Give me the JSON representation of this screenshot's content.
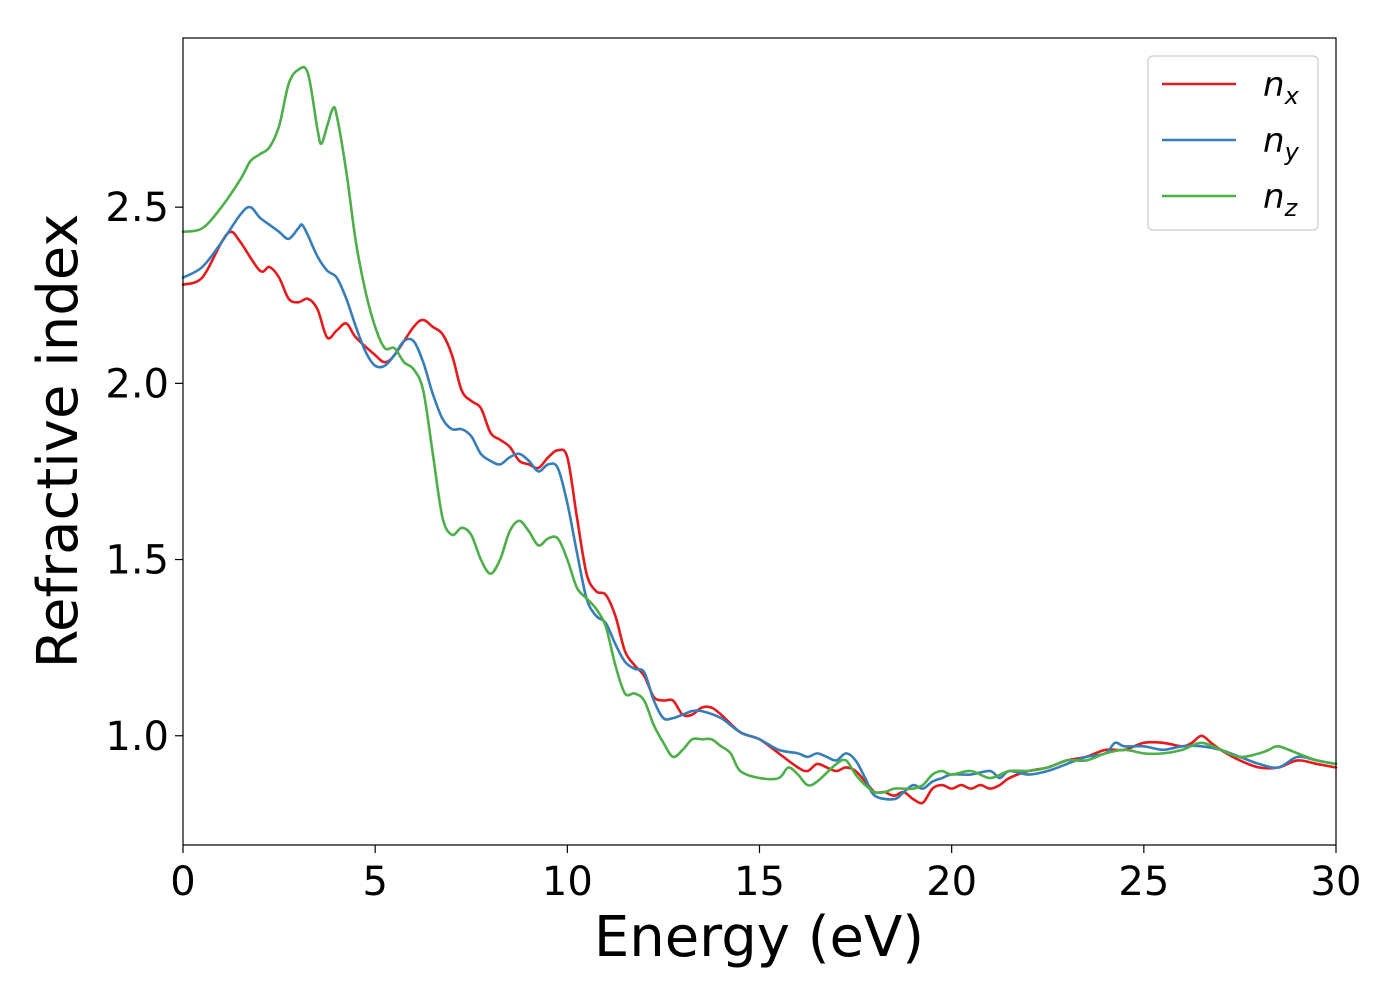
{
  "chart_data": {
    "type": "line",
    "title": "",
    "xlabel": "Energy (eV)",
    "ylabel": "Refractive index",
    "xlim": [
      0,
      30
    ],
    "ylim": [
      0.69,
      2.98
    ],
    "xticks": [
      0,
      5,
      10,
      15,
      20,
      25,
      30
    ],
    "yticks": [
      1.0,
      1.5,
      2.0,
      2.5
    ],
    "ytick_labels": [
      "1.0",
      "1.5",
      "2.0",
      "2.5"
    ],
    "grid": false,
    "legend_position": "top-right",
    "series": [
      {
        "name": "n",
        "subscript": "x",
        "color": "#e41a1c",
        "points": [
          [
            0,
            2.28
          ],
          [
            0.5,
            2.3
          ],
          [
            1.0,
            2.4
          ],
          [
            1.25,
            2.43
          ],
          [
            1.5,
            2.4
          ],
          [
            2.0,
            2.32
          ],
          [
            2.25,
            2.33
          ],
          [
            2.5,
            2.3
          ],
          [
            2.75,
            2.24
          ],
          [
            3.0,
            2.23
          ],
          [
            3.25,
            2.24
          ],
          [
            3.5,
            2.21
          ],
          [
            3.75,
            2.13
          ],
          [
            4.0,
            2.15
          ],
          [
            4.25,
            2.17
          ],
          [
            4.5,
            2.13
          ],
          [
            5.0,
            2.08
          ],
          [
            5.25,
            2.06
          ],
          [
            5.5,
            2.08
          ],
          [
            6.0,
            2.16
          ],
          [
            6.25,
            2.18
          ],
          [
            6.5,
            2.16
          ],
          [
            6.75,
            2.14
          ],
          [
            7.0,
            2.08
          ],
          [
            7.25,
            1.98
          ],
          [
            7.5,
            1.95
          ],
          [
            7.75,
            1.93
          ],
          [
            8.0,
            1.86
          ],
          [
            8.25,
            1.84
          ],
          [
            8.5,
            1.82
          ],
          [
            8.75,
            1.78
          ],
          [
            9.0,
            1.77
          ],
          [
            9.25,
            1.76
          ],
          [
            9.5,
            1.79
          ],
          [
            9.75,
            1.81
          ],
          [
            10.0,
            1.79
          ],
          [
            10.25,
            1.62
          ],
          [
            10.5,
            1.46
          ],
          [
            10.75,
            1.41
          ],
          [
            11.0,
            1.4
          ],
          [
            11.25,
            1.34
          ],
          [
            11.5,
            1.24
          ],
          [
            11.75,
            1.2
          ],
          [
            12.0,
            1.17
          ],
          [
            12.25,
            1.11
          ],
          [
            12.5,
            1.1
          ],
          [
            12.75,
            1.1
          ],
          [
            13.0,
            1.06
          ],
          [
            13.25,
            1.06
          ],
          [
            13.5,
            1.08
          ],
          [
            13.75,
            1.08
          ],
          [
            14.0,
            1.06
          ],
          [
            14.5,
            1.01
          ],
          [
            15.0,
            0.99
          ],
          [
            15.5,
            0.95
          ],
          [
            16.0,
            0.91
          ],
          [
            16.25,
            0.9
          ],
          [
            16.5,
            0.92
          ],
          [
            16.75,
            0.91
          ],
          [
            17.0,
            0.9
          ],
          [
            17.25,
            0.91
          ],
          [
            17.5,
            0.9
          ],
          [
            17.75,
            0.87
          ],
          [
            18.0,
            0.84
          ],
          [
            18.25,
            0.84
          ],
          [
            18.5,
            0.83
          ],
          [
            18.75,
            0.84
          ],
          [
            19.0,
            0.82
          ],
          [
            19.25,
            0.81
          ],
          [
            19.5,
            0.85
          ],
          [
            19.75,
            0.86
          ],
          [
            20.0,
            0.85
          ],
          [
            20.25,
            0.86
          ],
          [
            20.5,
            0.85
          ],
          [
            20.75,
            0.86
          ],
          [
            21.0,
            0.85
          ],
          [
            21.25,
            0.86
          ],
          [
            21.5,
            0.88
          ],
          [
            22.0,
            0.9
          ],
          [
            22.5,
            0.91
          ],
          [
            23.0,
            0.93
          ],
          [
            23.5,
            0.94
          ],
          [
            24.0,
            0.96
          ],
          [
            24.5,
            0.96
          ],
          [
            25.0,
            0.98
          ],
          [
            25.5,
            0.98
          ],
          [
            26.0,
            0.97
          ],
          [
            26.25,
            0.98
          ],
          [
            26.5,
            1.0
          ],
          [
            26.75,
            0.98
          ],
          [
            27.0,
            0.96
          ],
          [
            27.5,
            0.93
          ],
          [
            28.0,
            0.91
          ],
          [
            28.5,
            0.91
          ],
          [
            29.0,
            0.93
          ],
          [
            29.5,
            0.92
          ],
          [
            30.0,
            0.91
          ]
        ]
      },
      {
        "name": "n",
        "subscript": "y",
        "color": "#377eb8",
        "points": [
          [
            0,
            2.3
          ],
          [
            0.5,
            2.33
          ],
          [
            1.0,
            2.4
          ],
          [
            1.5,
            2.48
          ],
          [
            1.75,
            2.5
          ],
          [
            2.0,
            2.47
          ],
          [
            2.25,
            2.45
          ],
          [
            2.5,
            2.43
          ],
          [
            2.75,
            2.41
          ],
          [
            3.0,
            2.44
          ],
          [
            3.1,
            2.45
          ],
          [
            3.25,
            2.42
          ],
          [
            3.5,
            2.36
          ],
          [
            3.75,
            2.32
          ],
          [
            4.0,
            2.3
          ],
          [
            4.25,
            2.24
          ],
          [
            4.5,
            2.16
          ],
          [
            4.75,
            2.09
          ],
          [
            5.0,
            2.05
          ],
          [
            5.25,
            2.05
          ],
          [
            5.5,
            2.08
          ],
          [
            5.75,
            2.12
          ],
          [
            6.0,
            2.12
          ],
          [
            6.25,
            2.06
          ],
          [
            6.5,
            1.97
          ],
          [
            6.75,
            1.9
          ],
          [
            7.0,
            1.87
          ],
          [
            7.25,
            1.87
          ],
          [
            7.5,
            1.85
          ],
          [
            7.75,
            1.8
          ],
          [
            8.0,
            1.78
          ],
          [
            8.25,
            1.77
          ],
          [
            8.5,
            1.79
          ],
          [
            8.75,
            1.8
          ],
          [
            9.0,
            1.78
          ],
          [
            9.25,
            1.75
          ],
          [
            9.5,
            1.77
          ],
          [
            9.75,
            1.76
          ],
          [
            10.0,
            1.66
          ],
          [
            10.25,
            1.52
          ],
          [
            10.5,
            1.39
          ],
          [
            10.75,
            1.34
          ],
          [
            11.0,
            1.32
          ],
          [
            11.25,
            1.26
          ],
          [
            11.5,
            1.21
          ],
          [
            11.75,
            1.19
          ],
          [
            12.0,
            1.18
          ],
          [
            12.25,
            1.1
          ],
          [
            12.5,
            1.05
          ],
          [
            12.75,
            1.05
          ],
          [
            13.0,
            1.06
          ],
          [
            13.25,
            1.07
          ],
          [
            13.5,
            1.07
          ],
          [
            14.0,
            1.05
          ],
          [
            14.5,
            1.01
          ],
          [
            15.0,
            0.99
          ],
          [
            15.5,
            0.96
          ],
          [
            16.0,
            0.95
          ],
          [
            16.25,
            0.94
          ],
          [
            16.5,
            0.95
          ],
          [
            16.75,
            0.94
          ],
          [
            17.0,
            0.93
          ],
          [
            17.25,
            0.95
          ],
          [
            17.5,
            0.93
          ],
          [
            17.75,
            0.88
          ],
          [
            18.0,
            0.83
          ],
          [
            18.5,
            0.82
          ],
          [
            18.75,
            0.84
          ],
          [
            19.0,
            0.86
          ],
          [
            19.25,
            0.85
          ],
          [
            19.5,
            0.87
          ],
          [
            19.75,
            0.88
          ],
          [
            20.0,
            0.89
          ],
          [
            20.5,
            0.89
          ],
          [
            21.0,
            0.9
          ],
          [
            21.25,
            0.88
          ],
          [
            21.5,
            0.9
          ],
          [
            22.0,
            0.89
          ],
          [
            22.5,
            0.9
          ],
          [
            23.0,
            0.92
          ],
          [
            23.5,
            0.94
          ],
          [
            24.0,
            0.95
          ],
          [
            24.25,
            0.98
          ],
          [
            24.5,
            0.97
          ],
          [
            25.0,
            0.97
          ],
          [
            25.5,
            0.96
          ],
          [
            26.0,
            0.97
          ],
          [
            26.5,
            0.97
          ],
          [
            27.0,
            0.96
          ],
          [
            27.5,
            0.94
          ],
          [
            28.0,
            0.92
          ],
          [
            28.5,
            0.91
          ],
          [
            29.0,
            0.94
          ],
          [
            29.5,
            0.93
          ],
          [
            30.0,
            0.92
          ]
        ]
      },
      {
        "name": "n",
        "subscript": "z",
        "color": "#4daf4a",
        "points": [
          [
            0,
            2.43
          ],
          [
            0.5,
            2.44
          ],
          [
            1.0,
            2.5
          ],
          [
            1.5,
            2.58
          ],
          [
            1.75,
            2.63
          ],
          [
            2.0,
            2.65
          ],
          [
            2.25,
            2.67
          ],
          [
            2.5,
            2.73
          ],
          [
            2.75,
            2.85
          ],
          [
            3.0,
            2.89
          ],
          [
            3.25,
            2.88
          ],
          [
            3.5,
            2.72
          ],
          [
            3.6,
            2.68
          ],
          [
            3.75,
            2.73
          ],
          [
            3.9,
            2.78
          ],
          [
            4.0,
            2.76
          ],
          [
            4.25,
            2.6
          ],
          [
            4.5,
            2.4
          ],
          [
            4.75,
            2.26
          ],
          [
            5.0,
            2.16
          ],
          [
            5.25,
            2.1
          ],
          [
            5.5,
            2.1
          ],
          [
            5.75,
            2.06
          ],
          [
            6.0,
            2.04
          ],
          [
            6.25,
            1.98
          ],
          [
            6.5,
            1.8
          ],
          [
            6.75,
            1.62
          ],
          [
            7.0,
            1.57
          ],
          [
            7.25,
            1.59
          ],
          [
            7.5,
            1.57
          ],
          [
            7.75,
            1.5
          ],
          [
            8.0,
            1.46
          ],
          [
            8.25,
            1.5
          ],
          [
            8.5,
            1.58
          ],
          [
            8.75,
            1.61
          ],
          [
            9.0,
            1.58
          ],
          [
            9.25,
            1.54
          ],
          [
            9.5,
            1.56
          ],
          [
            9.75,
            1.56
          ],
          [
            10.0,
            1.5
          ],
          [
            10.25,
            1.42
          ],
          [
            10.5,
            1.39
          ],
          [
            10.75,
            1.36
          ],
          [
            11.0,
            1.31
          ],
          [
            11.25,
            1.2
          ],
          [
            11.5,
            1.12
          ],
          [
            11.75,
            1.12
          ],
          [
            12.0,
            1.1
          ],
          [
            12.25,
            1.03
          ],
          [
            12.5,
            0.98
          ],
          [
            12.75,
            0.94
          ],
          [
            13.0,
            0.96
          ],
          [
            13.25,
            0.99
          ],
          [
            13.5,
            0.99
          ],
          [
            13.75,
            0.99
          ],
          [
            14.0,
            0.97
          ],
          [
            14.25,
            0.95
          ],
          [
            14.5,
            0.9
          ],
          [
            15.0,
            0.88
          ],
          [
            15.5,
            0.88
          ],
          [
            15.75,
            0.91
          ],
          [
            16.0,
            0.89
          ],
          [
            16.25,
            0.86
          ],
          [
            16.5,
            0.87
          ],
          [
            17.0,
            0.92
          ],
          [
            17.25,
            0.93
          ],
          [
            17.5,
            0.89
          ],
          [
            17.75,
            0.86
          ],
          [
            18.0,
            0.84
          ],
          [
            18.25,
            0.84
          ],
          [
            18.5,
            0.85
          ],
          [
            18.75,
            0.85
          ],
          [
            19.0,
            0.85
          ],
          [
            19.25,
            0.86
          ],
          [
            19.5,
            0.89
          ],
          [
            19.75,
            0.9
          ],
          [
            20.0,
            0.89
          ],
          [
            20.5,
            0.9
          ],
          [
            21.0,
            0.88
          ],
          [
            21.5,
            0.9
          ],
          [
            22.0,
            0.9
          ],
          [
            22.5,
            0.91
          ],
          [
            23.0,
            0.93
          ],
          [
            23.5,
            0.93
          ],
          [
            24.0,
            0.95
          ],
          [
            24.5,
            0.96
          ],
          [
            25.0,
            0.95
          ],
          [
            25.5,
            0.95
          ],
          [
            26.0,
            0.96
          ],
          [
            26.5,
            0.98
          ],
          [
            27.0,
            0.96
          ],
          [
            27.5,
            0.94
          ],
          [
            28.0,
            0.95
          ],
          [
            28.25,
            0.96
          ],
          [
            28.5,
            0.97
          ],
          [
            29.0,
            0.95
          ],
          [
            29.5,
            0.93
          ],
          [
            30.0,
            0.92
          ]
        ]
      }
    ]
  }
}
